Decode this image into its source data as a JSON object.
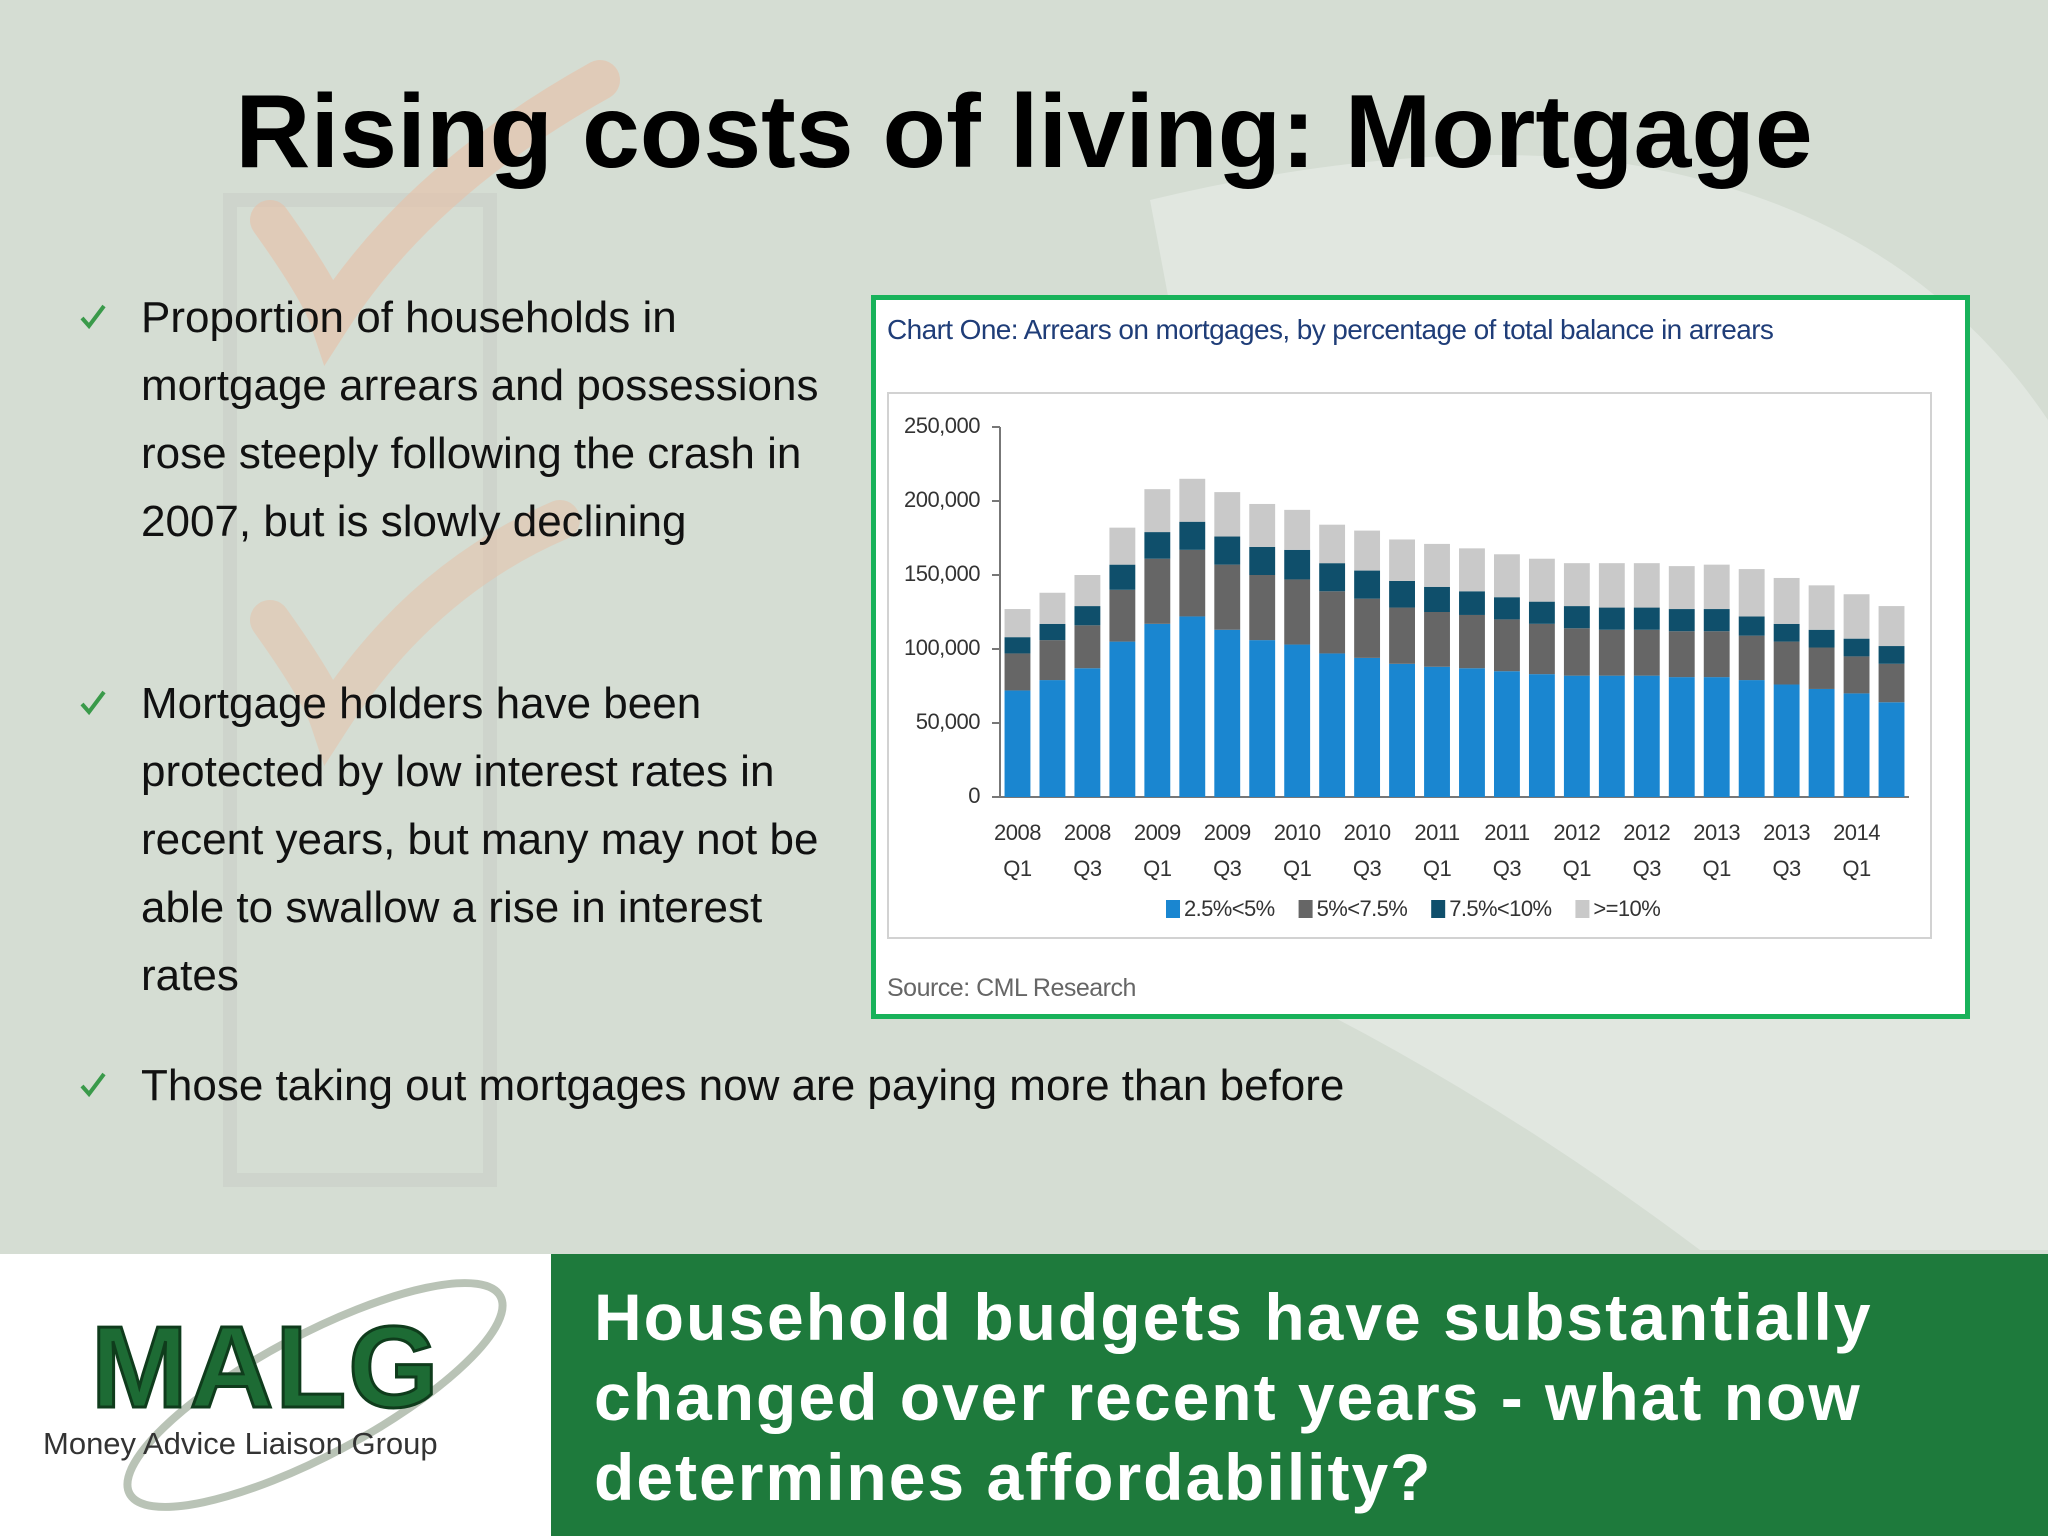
{
  "title": "Rising costs of living: Mortgage",
  "bullets": [
    "Proportion of households in mortgage arrears and possessions rose steeply following the crash in 2007, but is slowly declining",
    "Mortgage holders have been protected by low interest rates in recent years, but many may not be able to swallow a rise in interest rates",
    "Those taking out mortgages now are paying more than before"
  ],
  "chart_data": {
    "type": "bar",
    "stacked": true,
    "title": "Chart One: Arrears on mortgages, by percentage of total balance in arrears",
    "source": "Source: CML Research",
    "categories": [
      "2008 Q1",
      null,
      "2008 Q3",
      null,
      "2009 Q1",
      null,
      "2009 Q3",
      null,
      "2010 Q1",
      null,
      "2010 Q3",
      null,
      "2011 Q1",
      null,
      "2011 Q3",
      null,
      "2012 Q1",
      null,
      "2012 Q3",
      null,
      "2013 Q1",
      null,
      "2013 Q3",
      null,
      "2014 Q1",
      null
    ],
    "series": [
      {
        "name": "2.5%<5%",
        "color": "#1a86d0",
        "values": [
          72000,
          79000,
          87000,
          105000,
          117000,
          122000,
          113000,
          106000,
          103000,
          97000,
          94000,
          90000,
          88000,
          87000,
          85000,
          83000,
          82000,
          82000,
          82000,
          81000,
          81000,
          79000,
          76000,
          73000,
          70000,
          64000
        ]
      },
      {
        "name": "5%<7.5%",
        "color": "#666666",
        "values": [
          25000,
          27000,
          29000,
          35000,
          44000,
          45000,
          44000,
          44000,
          44000,
          42000,
          40000,
          38000,
          37000,
          36000,
          35000,
          34000,
          32000,
          31000,
          31000,
          31000,
          31000,
          30000,
          29000,
          28000,
          25000,
          26000
        ]
      },
      {
        "name": "7.5%<10%",
        "color": "#0f4f6b",
        "values": [
          11000,
          11000,
          13000,
          17000,
          18000,
          19000,
          19000,
          19000,
          20000,
          19000,
          19000,
          18000,
          17000,
          16000,
          15000,
          15000,
          15000,
          15000,
          15000,
          15000,
          15000,
          13000,
          12000,
          12000,
          12000,
          12000
        ]
      },
      {
        "name": ">=10%",
        "color": "#c9c9c9",
        "values": [
          19000,
          21000,
          21000,
          25000,
          29000,
          29000,
          30000,
          29000,
          27000,
          26000,
          27000,
          28000,
          29000,
          29000,
          29000,
          29000,
          29000,
          30000,
          30000,
          29000,
          30000,
          32000,
          31000,
          30000,
          30000,
          27000
        ]
      }
    ],
    "ylim": [
      0,
      250000
    ],
    "yticks": [
      0,
      {
        "value": 50000,
        "label": "50,000"
      },
      {
        "value": 100000,
        "label": "100,000"
      },
      {
        "value": 150000,
        "label": "150,000"
      },
      {
        "value": 200000,
        "label": "200,000"
      },
      {
        "value": 250000,
        "label": "250,000"
      }
    ]
  },
  "footer": {
    "logo": "MALG",
    "organization": "Money Advice Liaison Group",
    "tagline": "Household budgets have substantially changed over recent years - what now determines affordability?"
  }
}
